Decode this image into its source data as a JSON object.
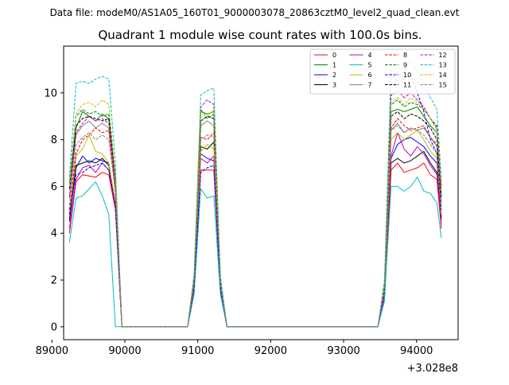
{
  "suptitle": "Data file: modeM0/AS1A05_160T01_9000003078_20863cztM0_level2_quad_clean.evt",
  "chart_data": {
    "type": "line",
    "title": "Quadrant 1 module wise count rates with 100.0s bins.",
    "xlabel": "",
    "ylabel": "",
    "x_offset_label": "+3.028e8",
    "xlim": [
      89160,
      94570
    ],
    "ylim": [
      -0.55,
      12.0
    ],
    "xticks": [
      89000,
      90000,
      91000,
      92000,
      93000,
      94000
    ],
    "xtick_labels": [
      "89000",
      "90000",
      "91000",
      "92000",
      "93000",
      "94000"
    ],
    "yticks": [
      0,
      2,
      4,
      6,
      8,
      10
    ],
    "ytick_labels": [
      "0",
      "2",
      "4",
      "6",
      "8",
      "10"
    ],
    "grid": false,
    "legend": {
      "placement": "top-right",
      "ncol": 4
    },
    "x": [
      89240,
      89330,
      89420,
      89510,
      89600,
      89690,
      89780,
      89870,
      89960,
      90050,
      90140,
      90230,
      90320,
      90410,
      90500,
      90590,
      90680,
      90770,
      90860,
      90950,
      91040,
      91130,
      91220,
      91310,
      91400,
      91490,
      91580,
      91670,
      91760,
      91850,
      91940,
      92030,
      92120,
      92210,
      92300,
      92390,
      92480,
      92570,
      92660,
      92750,
      92840,
      92930,
      93020,
      93110,
      93200,
      93290,
      93380,
      93470,
      93560,
      93650,
      93740,
      93830,
      93920,
      94010,
      94100,
      94190,
      94280,
      94340
    ],
    "series": [
      {
        "name": "0",
        "color": "#ff0000",
        "dash": "solid",
        "values": [
          4.0,
          6.2,
          6.5,
          6.45,
          6.4,
          6.6,
          6.5,
          5.0,
          0,
          0,
          0,
          0,
          0,
          0,
          0,
          0,
          0,
          0,
          0,
          1.6,
          6.7,
          6.7,
          6.7,
          1.5,
          0,
          0,
          0,
          0,
          0,
          0,
          0,
          0,
          0,
          0,
          0,
          0,
          0,
          0,
          0,
          0,
          0,
          0,
          0,
          0,
          0,
          0,
          0,
          0,
          1.2,
          6.7,
          7.0,
          6.6,
          6.7,
          6.8,
          7.0,
          6.5,
          6.3,
          4.2
        ]
      },
      {
        "name": "1",
        "color": "#008000",
        "dash": "solid",
        "values": [
          6.0,
          8.5,
          9.2,
          9.0,
          8.8,
          9.1,
          8.9,
          6.3,
          0,
          0,
          0,
          0,
          0,
          0,
          0,
          0,
          0,
          0,
          0,
          2.1,
          9.2,
          9.1,
          9.2,
          2.0,
          0,
          0,
          0,
          0,
          0,
          0,
          0,
          0,
          0,
          0,
          0,
          0,
          0,
          0,
          0,
          0,
          0,
          0,
          0,
          0,
          0,
          0,
          0,
          0,
          1.8,
          9.2,
          9.3,
          9.2,
          9.3,
          9.4,
          9.0,
          8.6,
          8.3,
          6.0
        ]
      },
      {
        "name": "2",
        "color": "#0000ff",
        "dash": "solid",
        "values": [
          4.5,
          6.8,
          7.3,
          7.0,
          7.2,
          7.1,
          7.0,
          5.2,
          0,
          0,
          0,
          0,
          0,
          0,
          0,
          0,
          0,
          0,
          0,
          1.7,
          7.4,
          7.2,
          7.1,
          1.7,
          0,
          0,
          0,
          0,
          0,
          0,
          0,
          0,
          0,
          0,
          0,
          0,
          0,
          0,
          0,
          0,
          0,
          0,
          0,
          0,
          0,
          0,
          0,
          0,
          1.4,
          7.2,
          7.8,
          8.0,
          8.1,
          7.9,
          7.7,
          7.3,
          7.0,
          4.6
        ]
      },
      {
        "name": "3",
        "color": "#000000",
        "dash": "solid",
        "values": [
          4.6,
          6.9,
          7.0,
          7.1,
          7.0,
          7.2,
          6.9,
          5.3,
          0,
          0,
          0,
          0,
          0,
          0,
          0,
          0,
          0,
          0,
          0,
          1.8,
          7.7,
          7.6,
          7.9,
          1.8,
          0,
          0,
          0,
          0,
          0,
          0,
          0,
          0,
          0,
          0,
          0,
          0,
          0,
          0,
          0,
          0,
          0,
          0,
          0,
          0,
          0,
          0,
          0,
          0,
          1.4,
          7.0,
          7.2,
          7.0,
          7.1,
          7.3,
          7.5,
          7.0,
          6.6,
          4.7
        ]
      },
      {
        "name": "4",
        "color": "#bf00bf",
        "dash": "solid",
        "values": [
          4.2,
          6.3,
          6.8,
          6.9,
          6.6,
          7.0,
          6.7,
          5.1,
          0,
          0,
          0,
          0,
          0,
          0,
          0,
          0,
          0,
          0,
          0,
          1.7,
          7.2,
          7.0,
          7.3,
          1.6,
          0,
          0,
          0,
          0,
          0,
          0,
          0,
          0,
          0,
          0,
          0,
          0,
          0,
          0,
          0,
          0,
          0,
          0,
          0,
          0,
          0,
          0,
          0,
          0,
          1.3,
          7.3,
          8.3,
          7.6,
          7.3,
          7.7,
          7.4,
          6.9,
          6.5,
          4.4
        ]
      },
      {
        "name": "5",
        "color": "#00bfbf",
        "dash": "solid",
        "values": [
          3.6,
          5.5,
          5.6,
          5.9,
          6.2,
          5.6,
          4.8,
          0,
          0,
          0,
          0,
          0,
          0,
          0,
          0,
          0,
          0,
          0,
          0,
          1.4,
          5.9,
          5.5,
          5.6,
          1.4,
          0,
          0,
          0,
          0,
          0,
          0,
          0,
          0,
          0,
          0,
          0,
          0,
          0,
          0,
          0,
          0,
          0,
          0,
          0,
          0,
          0,
          0,
          0,
          0,
          1.1,
          6.0,
          6.0,
          5.8,
          6.0,
          6.4,
          5.8,
          5.7,
          5.3,
          3.8
        ]
      },
      {
        "name": "6",
        "color": "#bfbf00",
        "dash": "solid",
        "values": [
          4.8,
          7.3,
          7.6,
          8.2,
          7.5,
          7.4,
          7.0,
          5.3,
          0,
          0,
          0,
          0,
          0,
          0,
          0,
          0,
          0,
          0,
          0,
          1.8,
          7.5,
          7.8,
          7.6,
          1.8,
          0,
          0,
          0,
          0,
          0,
          0,
          0,
          0,
          0,
          0,
          0,
          0,
          0,
          0,
          0,
          0,
          0,
          0,
          0,
          0,
          0,
          0,
          0,
          0,
          1.5,
          8.0,
          8.3,
          8.0,
          8.2,
          8.4,
          8.0,
          7.5,
          7.2,
          4.8
        ]
      },
      {
        "name": "7",
        "color": "#808080",
        "dash": "solid",
        "values": [
          5.6,
          8.2,
          8.6,
          8.8,
          8.5,
          8.7,
          8.5,
          6.0,
          0,
          0,
          0,
          0,
          0,
          0,
          0,
          0,
          0,
          0,
          0,
          2.0,
          8.6,
          8.8,
          8.6,
          1.9,
          0,
          0,
          0,
          0,
          0,
          0,
          0,
          0,
          0,
          0,
          0,
          0,
          0,
          0,
          0,
          0,
          0,
          0,
          0,
          0,
          0,
          0,
          0,
          0,
          1.6,
          8.4,
          8.7,
          8.3,
          8.5,
          8.4,
          8.5,
          8.1,
          7.7,
          5.5
        ]
      },
      {
        "name": "8",
        "color": "#ff0000",
        "dash": "dashed",
        "values": [
          5.0,
          7.4,
          8.0,
          8.2,
          8.5,
          8.3,
          8.4,
          5.7,
          0,
          0,
          0,
          0,
          0,
          0,
          0,
          0,
          0,
          0,
          0,
          1.9,
          8.1,
          8.0,
          8.3,
          1.8,
          0,
          0,
          0,
          0,
          0,
          0,
          0,
          0,
          0,
          0,
          0,
          0,
          0,
          0,
          0,
          0,
          0,
          0,
          0,
          0,
          0,
          0,
          0,
          0,
          1.6,
          8.5,
          8.9,
          8.6,
          8.4,
          8.5,
          8.6,
          8.1,
          7.8,
          5.3
        ]
      },
      {
        "name": "9",
        "color": "#008000",
        "dash": "dashed",
        "values": [
          6.2,
          9.0,
          9.3,
          9.1,
          9.2,
          9.0,
          9.1,
          6.4,
          0,
          0,
          0,
          0,
          0,
          0,
          0,
          0,
          0,
          0,
          0,
          2.2,
          9.3,
          8.9,
          9.1,
          2.0,
          0,
          0,
          0,
          0,
          0,
          0,
          0,
          0,
          0,
          0,
          0,
          0,
          0,
          0,
          0,
          0,
          0,
          0,
          0,
          0,
          0,
          0,
          0,
          0,
          1.8,
          9.5,
          9.7,
          9.4,
          9.6,
          9.5,
          9.3,
          8.9,
          8.5,
          6.0
        ]
      },
      {
        "name": "10",
        "color": "#0000ff",
        "dash": "dashed",
        "values": [
          4.8,
          6.5,
          6.6,
          6.8,
          6.9,
          7.0,
          6.7,
          5.2,
          0,
          0,
          0,
          0,
          0,
          0,
          0,
          0,
          0,
          0,
          0,
          1.7,
          6.6,
          6.8,
          6.9,
          1.7,
          0,
          0,
          0,
          0,
          0,
          0,
          0,
          0,
          0,
          0,
          0,
          0,
          0,
          0,
          0,
          0,
          0,
          0,
          0,
          0,
          0,
          0,
          0,
          0,
          1.5,
          10.8,
          10.5,
          10.6,
          10.8,
          10.0,
          9.2,
          8.0,
          7.4,
          5.0
        ]
      },
      {
        "name": "11",
        "color": "#000000",
        "dash": "dashed",
        "values": [
          5.9,
          8.6,
          8.9,
          9.0,
          8.9,
          8.8,
          8.9,
          6.2,
          0,
          0,
          0,
          0,
          0,
          0,
          0,
          0,
          0,
          0,
          0,
          2.1,
          8.8,
          9.0,
          8.9,
          2.0,
          0,
          0,
          0,
          0,
          0,
          0,
          0,
          0,
          0,
          0,
          0,
          0,
          0,
          0,
          0,
          0,
          0,
          0,
          0,
          0,
          0,
          0,
          0,
          0,
          1.7,
          9.0,
          9.2,
          8.9,
          9.1,
          9.0,
          8.8,
          8.5,
          8.0,
          5.6
        ]
      },
      {
        "name": "12",
        "color": "#bf00bf",
        "dash": "dashed",
        "values": [
          5.5,
          8.3,
          8.7,
          9.0,
          8.8,
          8.9,
          8.7,
          6.1,
          0,
          0,
          0,
          0,
          0,
          0,
          0,
          0,
          0,
          0,
          0,
          2.1,
          9.4,
          9.7,
          9.5,
          2.0,
          0,
          0,
          0,
          0,
          0,
          0,
          0,
          0,
          0,
          0,
          0,
          0,
          0,
          0,
          0,
          0,
          0,
          0,
          0,
          0,
          0,
          0,
          0,
          0,
          1.7,
          9.9,
          10.1,
          9.8,
          10.0,
          9.7,
          9.4,
          8.9,
          8.6,
          5.9
        ]
      },
      {
        "name": "13",
        "color": "#00bfbf",
        "dash": "dashed",
        "values": [
          6.4,
          10.4,
          10.5,
          10.4,
          10.6,
          10.7,
          10.6,
          7.0,
          0,
          0,
          0,
          0,
          0,
          0,
          0,
          0,
          0,
          0,
          0,
          2.3,
          9.9,
          10.1,
          10.2,
          2.2,
          0,
          0,
          0,
          0,
          0,
          0,
          0,
          0,
          0,
          0,
          0,
          0,
          0,
          0,
          0,
          0,
          0,
          0,
          0,
          0,
          0,
          0,
          0,
          0,
          2.0,
          11.0,
          10.8,
          10.9,
          11.4,
          10.9,
          10.4,
          9.8,
          9.3,
          6.3
        ]
      },
      {
        "name": "14",
        "color": "#bfbf00",
        "dash": "dashed",
        "values": [
          6.0,
          9.1,
          9.5,
          9.6,
          9.4,
          9.7,
          9.5,
          6.5,
          0,
          0,
          0,
          0,
          0,
          0,
          0,
          0,
          0,
          0,
          0,
          2.2,
          9.2,
          9.0,
          9.3,
          2.0,
          0,
          0,
          0,
          0,
          0,
          0,
          0,
          0,
          0,
          0,
          0,
          0,
          0,
          0,
          0,
          0,
          0,
          0,
          0,
          0,
          0,
          0,
          0,
          0,
          1.8,
          9.6,
          9.8,
          9.5,
          9.8,
          9.6,
          9.3,
          8.9,
          8.4,
          5.9
        ]
      },
      {
        "name": "15",
        "color": "#808080",
        "dash": "dashed",
        "values": [
          5.2,
          7.8,
          8.1,
          8.3,
          8.0,
          8.2,
          8.0,
          5.8,
          0,
          0,
          0,
          0,
          0,
          0,
          0,
          0,
          0,
          0,
          0,
          1.9,
          8.0,
          8.2,
          8.1,
          1.8,
          0,
          0,
          0,
          0,
          0,
          0,
          0,
          0,
          0,
          0,
          0,
          0,
          0,
          0,
          0,
          0,
          0,
          0,
          0,
          0,
          0,
          0,
          0,
          0,
          1.6,
          8.4,
          8.6,
          8.3,
          8.5,
          8.4,
          8.2,
          7.8,
          7.4,
          5.2
        ]
      }
    ]
  }
}
